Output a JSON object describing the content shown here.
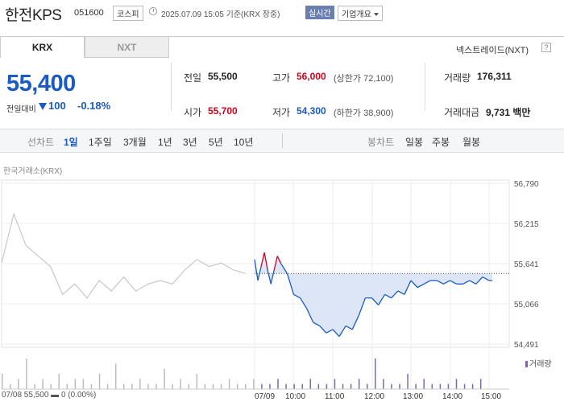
{
  "header": {
    "name": "한전KPS",
    "code": "051600",
    "market": "코스피",
    "timestamp": "2025.07.09 15:05 기준(KRX 장중)",
    "realtime": "실시간",
    "company_button": "기업개요"
  },
  "tabs": {
    "krx": "KRX",
    "nxt": "NXT"
  },
  "nextrade": {
    "label": "넥스트레이드(NXT)",
    "help": "?"
  },
  "quote": {
    "price": "55,400",
    "change_label": "전일대비",
    "change": "100",
    "change_pct": "-0.18%",
    "direction": "down"
  },
  "stats": {
    "prev_label": "전일",
    "prev": "55,500",
    "open_label": "시가",
    "open": "55,700",
    "high_label": "고가",
    "high": "56,000",
    "upper_limit": "(상한가 72,100)",
    "low_label": "저가",
    "low": "54,300",
    "lower_limit": "(하한가 38,900)",
    "volume_label": "거래량",
    "volume": "176,311",
    "amount_label": "거래대금",
    "amount": "9,731 백만"
  },
  "line_periods": {
    "label": "선차트",
    "items": [
      "1일",
      "1주일",
      "3개월",
      "1년",
      "3년",
      "5년",
      "10년"
    ],
    "active": "1일"
  },
  "candle_periods": {
    "label": "봉차트",
    "items": [
      "일봉",
      "주봉",
      "월봉"
    ]
  },
  "colors": {
    "up": "#d0021b",
    "down": "#1a5ac2",
    "fill": "#dde6f7",
    "prev_day": "#c8c8c8",
    "volume": "#7c6aa8"
  },
  "chart_data": {
    "type": "line",
    "source": "한국거래소(KRX)",
    "y_ticks": [
      "56,790",
      "56,215",
      "55,641",
      "55,066",
      "54,491"
    ],
    "ylim": [
      54491,
      56790
    ],
    "reference_price": 55500,
    "x_labels": [
      "07/09",
      "10:00",
      "11:00",
      "12:00",
      "13:00",
      "14:00",
      "15:00"
    ],
    "volume_legend": "거래량",
    "footer": "07/08  55,500 ▬ 0 (0.00%)",
    "previous_day": {
      "x": [
        0,
        0.05,
        0.1,
        0.15,
        0.2,
        0.25,
        0.3,
        0.35,
        0.4,
        0.45,
        0.5,
        0.55,
        0.6,
        0.65,
        0.7,
        0.75,
        0.8,
        0.85,
        0.9,
        0.95,
        1.0
      ],
      "y": [
        55650,
        56350,
        55900,
        55750,
        55600,
        55200,
        55350,
        55150,
        55400,
        55250,
        55450,
        55250,
        55350,
        55400,
        55350,
        55550,
        55700,
        55600,
        55650,
        55550,
        55500
      ]
    },
    "today": {
      "x": [
        "09:00",
        "09:05",
        "09:10",
        "09:15",
        "09:20",
        "09:25",
        "09:30",
        "09:35",
        "09:40",
        "09:50",
        "10:00",
        "10:10",
        "10:20",
        "10:30",
        "10:40",
        "10:50",
        "11:00",
        "11:10",
        "11:20",
        "11:30",
        "11:40",
        "11:50",
        "12:00",
        "12:10",
        "12:20",
        "12:30",
        "12:40",
        "12:50",
        "13:00",
        "13:10",
        "13:20",
        "13:30",
        "13:40",
        "13:50",
        "14:00",
        "14:10",
        "14:20",
        "14:30",
        "14:40",
        "14:50",
        "15:00",
        "15:05"
      ],
      "y": [
        55700,
        55400,
        55600,
        55800,
        55550,
        55350,
        55550,
        55750,
        55650,
        55500,
        55200,
        55150,
        55000,
        54800,
        54750,
        54650,
        54700,
        54600,
        54750,
        54700,
        54900,
        55150,
        55150,
        55050,
        55200,
        55150,
        55250,
        55200,
        55400,
        55300,
        55350,
        55400,
        55400,
        55350,
        55400,
        55350,
        55350,
        55400,
        55350,
        55450,
        55400,
        55400
      ]
    },
    "volume": [
      3,
      1,
      2,
      6,
      1,
      2,
      1,
      3,
      1,
      2,
      2,
      1,
      3,
      1,
      5,
      1,
      1,
      2,
      1,
      1,
      4,
      1,
      2,
      1,
      3,
      1,
      1,
      1,
      2,
      1,
      1,
      2,
      1,
      1,
      2,
      1,
      1,
      1,
      2,
      1,
      1,
      2,
      1,
      1,
      2,
      1,
      6,
      2,
      1,
      1,
      3,
      1,
      2,
      1,
      1,
      1,
      2,
      1,
      1,
      2
    ]
  }
}
